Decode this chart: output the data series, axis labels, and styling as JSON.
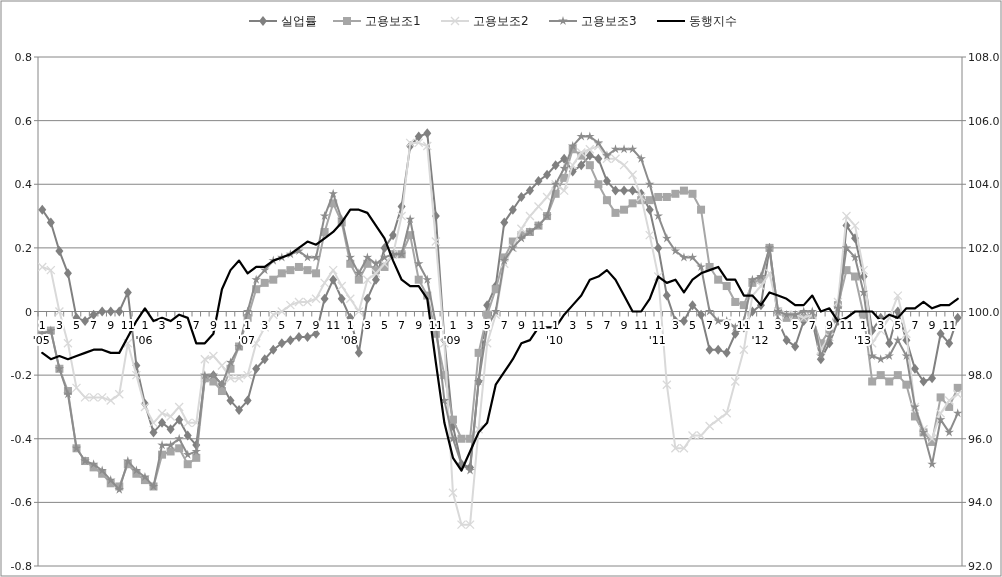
{
  "chart_data": {
    "type": "line",
    "categories": [
      "1\n'05",
      null,
      "3",
      null,
      "5",
      null,
      "7",
      null,
      "9",
      null,
      "11",
      null,
      "1\n'06",
      null,
      "3",
      null,
      "5",
      null,
      "7",
      null,
      "9",
      null,
      "11",
      null,
      "1\n'07",
      null,
      "3",
      null,
      "5",
      null,
      "7",
      null,
      "9",
      null,
      "11",
      null,
      "1\n'08",
      null,
      "3",
      null,
      "5",
      null,
      "7",
      null,
      "9",
      null,
      "11",
      null,
      "1\n'09",
      null,
      "3",
      null,
      "5",
      null,
      "7",
      null,
      "9",
      null,
      "11",
      null,
      "1\n'10",
      null,
      "3",
      null,
      "5",
      null,
      "7",
      null,
      "9",
      null,
      "11",
      null,
      "1\n'11",
      null,
      "3",
      null,
      "5",
      null,
      "7",
      null,
      "9",
      null,
      "11",
      null,
      "1\n'12",
      null,
      "3",
      null,
      "5",
      null,
      "7",
      null,
      "9",
      null,
      "11",
      null,
      "1\n'13",
      null,
      "3",
      null,
      "5",
      null,
      "7",
      null,
      "9",
      null,
      "11",
      null
    ],
    "series": [
      {
        "name": "실업률",
        "color": "#808080",
        "marker": "diamond",
        "values": [
          0.32,
          0.28,
          0.19,
          0.12,
          -0.02,
          -0.03,
          -0.01,
          0.0,
          0.0,
          0.0,
          0.06,
          -0.17,
          -0.29,
          -0.38,
          -0.35,
          -0.37,
          -0.34,
          -0.39,
          -0.42,
          -0.21,
          -0.2,
          -0.23,
          -0.28,
          -0.31,
          -0.28,
          -0.18,
          -0.15,
          -0.12,
          -0.1,
          -0.09,
          -0.08,
          -0.08,
          -0.07,
          0.04,
          0.1,
          0.04,
          -0.02,
          -0.13,
          0.04,
          0.1,
          0.2,
          0.24,
          0.33,
          0.52,
          0.55,
          0.56,
          0.3,
          -0.09,
          -0.36,
          -0.48,
          -0.49,
          -0.22,
          0.02,
          0.08,
          0.28,
          0.32,
          0.36,
          0.38,
          0.41,
          0.43,
          0.46,
          0.48,
          0.44,
          0.46,
          0.49,
          0.48,
          0.41,
          0.38,
          0.38,
          0.38,
          0.37,
          0.32,
          0.2,
          0.05,
          -0.03,
          -0.03,
          0.02,
          -0.01,
          -0.12,
          -0.12,
          -0.13,
          -0.07,
          -0.05,
          0.0,
          0.02,
          0.2,
          -0.03,
          -0.09,
          -0.11,
          -0.03,
          -0.03,
          -0.15,
          -0.1,
          -0.03,
          0.27,
          0.23,
          0.11,
          -0.06,
          -0.02,
          -0.1,
          0.0,
          -0.09,
          -0.18,
          -0.22,
          -0.21,
          -0.07,
          -0.1,
          -0.02
        ]
      },
      {
        "name": "고용보조1",
        "color": "#a6a6a6",
        "marker": "square",
        "values": [
          -0.07,
          -0.06,
          -0.18,
          -0.25,
          -0.43,
          -0.47,
          -0.49,
          -0.51,
          -0.54,
          -0.55,
          -0.48,
          -0.51,
          -0.53,
          -0.55,
          -0.45,
          -0.44,
          -0.43,
          -0.48,
          -0.46,
          -0.21,
          -0.22,
          -0.25,
          -0.18,
          -0.11,
          -0.02,
          0.07,
          0.09,
          0.1,
          0.12,
          0.13,
          0.14,
          0.13,
          0.12,
          0.25,
          0.34,
          0.28,
          0.15,
          0.1,
          0.15,
          0.13,
          0.14,
          0.18,
          0.18,
          0.24,
          0.1,
          0.05,
          -0.07,
          -0.2,
          -0.34,
          -0.4,
          -0.4,
          -0.13,
          -0.01,
          0.07,
          0.17,
          0.22,
          0.24,
          0.25,
          0.27,
          0.3,
          0.37,
          0.42,
          0.51,
          0.49,
          0.46,
          0.4,
          0.35,
          0.31,
          0.32,
          0.34,
          0.35,
          0.35,
          0.36,
          0.36,
          0.37,
          0.38,
          0.37,
          0.32,
          0.14,
          0.1,
          0.08,
          0.03,
          0.02,
          0.09,
          0.1,
          0.2,
          0.0,
          -0.02,
          -0.02,
          -0.02,
          -0.02,
          -0.1,
          -0.06,
          0.02,
          0.13,
          0.11,
          -0.01,
          -0.22,
          -0.2,
          -0.22,
          -0.2,
          -0.23,
          -0.33,
          -0.38,
          -0.41,
          -0.27,
          -0.3,
          -0.24
        ]
      },
      {
        "name": "고용보조2",
        "color": "#d9d9d9",
        "marker": "cross",
        "values": [
          0.14,
          0.13,
          0.0,
          -0.1,
          -0.24,
          -0.27,
          -0.27,
          -0.27,
          -0.28,
          -0.26,
          -0.1,
          -0.2,
          -0.3,
          -0.35,
          -0.32,
          -0.33,
          -0.3,
          -0.35,
          -0.35,
          -0.15,
          -0.14,
          -0.17,
          -0.21,
          -0.21,
          -0.2,
          -0.1,
          -0.05,
          -0.01,
          0.0,
          0.02,
          0.03,
          0.03,
          0.04,
          0.09,
          0.13,
          0.08,
          0.04,
          0.0,
          0.1,
          0.12,
          0.15,
          0.18,
          0.3,
          0.53,
          0.53,
          0.52,
          0.22,
          -0.1,
          -0.57,
          -0.67,
          -0.67,
          -0.37,
          -0.1,
          -0.01,
          0.15,
          0.2,
          0.26,
          0.3,
          0.33,
          0.36,
          0.4,
          0.38,
          0.46,
          0.5,
          0.51,
          0.52,
          0.48,
          0.48,
          0.46,
          0.43,
          0.36,
          0.24,
          0.11,
          -0.23,
          -0.43,
          -0.43,
          -0.39,
          -0.39,
          -0.36,
          -0.34,
          -0.32,
          -0.22,
          -0.12,
          0.05,
          0.08,
          0.12,
          0.0,
          -0.01,
          -0.01,
          -0.02,
          -0.01,
          -0.12,
          -0.08,
          0.03,
          0.3,
          0.27,
          0.13,
          -0.1,
          -0.06,
          -0.02,
          0.05,
          -0.07,
          -0.3,
          -0.37,
          -0.4,
          -0.32,
          -0.28,
          -0.26
        ]
      },
      {
        "name": "고용보조3",
        "color": "#8c8c8c",
        "marker": "star",
        "values": [
          -0.07,
          -0.06,
          -0.18,
          -0.26,
          -0.43,
          -0.47,
          -0.48,
          -0.5,
          -0.53,
          -0.56,
          -0.47,
          -0.5,
          -0.52,
          -0.55,
          -0.42,
          -0.42,
          -0.4,
          -0.45,
          -0.44,
          -0.2,
          -0.2,
          -0.23,
          -0.16,
          -0.11,
          0.0,
          0.1,
          0.13,
          0.16,
          0.17,
          0.18,
          0.19,
          0.17,
          0.17,
          0.3,
          0.37,
          0.29,
          0.17,
          0.12,
          0.17,
          0.15,
          0.17,
          0.18,
          0.18,
          0.29,
          0.15,
          0.1,
          -0.04,
          -0.28,
          -0.4,
          -0.48,
          -0.5,
          -0.22,
          -0.05,
          0.0,
          0.16,
          0.2,
          0.23,
          0.25,
          0.27,
          0.3,
          0.4,
          0.45,
          0.52,
          0.55,
          0.55,
          0.53,
          0.49,
          0.51,
          0.51,
          0.51,
          0.48,
          0.4,
          0.3,
          0.23,
          0.19,
          0.17,
          0.17,
          0.14,
          0.0,
          -0.03,
          -0.03,
          -0.05,
          -0.03,
          0.1,
          0.11,
          0.2,
          0.0,
          -0.01,
          -0.01,
          0.0,
          0.0,
          -0.14,
          -0.08,
          0.01,
          0.2,
          0.17,
          0.06,
          -0.14,
          -0.15,
          -0.14,
          -0.09,
          -0.14,
          -0.3,
          -0.38,
          -0.48,
          -0.34,
          -0.38,
          -0.32
        ]
      },
      {
        "name": "동행지수",
        "color": "#000000",
        "marker": "none",
        "axis": "y2",
        "values": [
          98.7,
          98.5,
          98.6,
          98.5,
          98.6,
          98.7,
          98.8,
          98.8,
          98.7,
          98.7,
          99.2,
          99.7,
          100.1,
          99.7,
          99.8,
          99.7,
          99.9,
          99.8,
          99.0,
          99.0,
          99.3,
          100.7,
          101.3,
          101.6,
          101.2,
          101.4,
          101.4,
          101.6,
          101.7,
          101.8,
          102.0,
          102.2,
          102.1,
          102.3,
          102.5,
          102.8,
          103.2,
          103.2,
          103.1,
          102.7,
          102.3,
          101.6,
          101.0,
          100.8,
          100.8,
          100.4,
          98.4,
          96.5,
          95.4,
          95.0,
          95.6,
          96.2,
          96.5,
          97.7,
          98.1,
          98.5,
          99.0,
          99.1,
          99.5,
          99.5,
          99.5,
          99.9,
          100.2,
          100.5,
          101.0,
          101.1,
          101.3,
          101.0,
          100.5,
          100.0,
          100.0,
          100.4,
          101.1,
          100.9,
          101.0,
          100.6,
          101.0,
          101.2,
          101.3,
          101.4,
          101.0,
          101.0,
          100.5,
          100.5,
          100.2,
          100.6,
          100.5,
          100.4,
          100.2,
          100.2,
          100.5,
          100.0,
          100.1,
          99.7,
          99.8,
          100.0,
          100.0,
          100.0,
          99.7,
          99.9,
          99.8,
          100.1,
          100.1,
          100.3,
          100.1,
          100.2,
          100.2,
          100.4
        ]
      }
    ],
    "ylim": [
      -0.8,
      0.8
    ],
    "yticks": [
      -0.8,
      -0.6,
      -0.4,
      -0.2,
      0,
      0.2,
      0.4,
      0.6,
      0.8
    ],
    "y2lim": [
      92,
      108
    ],
    "y2ticks": [
      {
        "value": 92,
        "label": "92.0"
      },
      {
        "value": 94,
        "label": "94.0"
      },
      {
        "value": 96,
        "label": "96.0"
      },
      {
        "value": 98,
        "label": "98.0"
      },
      {
        "value": 100,
        "label": "100.0"
      },
      {
        "value": 102,
        "label": "102.0"
      },
      {
        "value": 104,
        "label": "104.0"
      },
      {
        "value": 106,
        "label": "106.0"
      },
      {
        "value": 108,
        "label": "108.0"
      }
    ],
    "grid": "y",
    "legend": "top",
    "line_style": "solid"
  }
}
